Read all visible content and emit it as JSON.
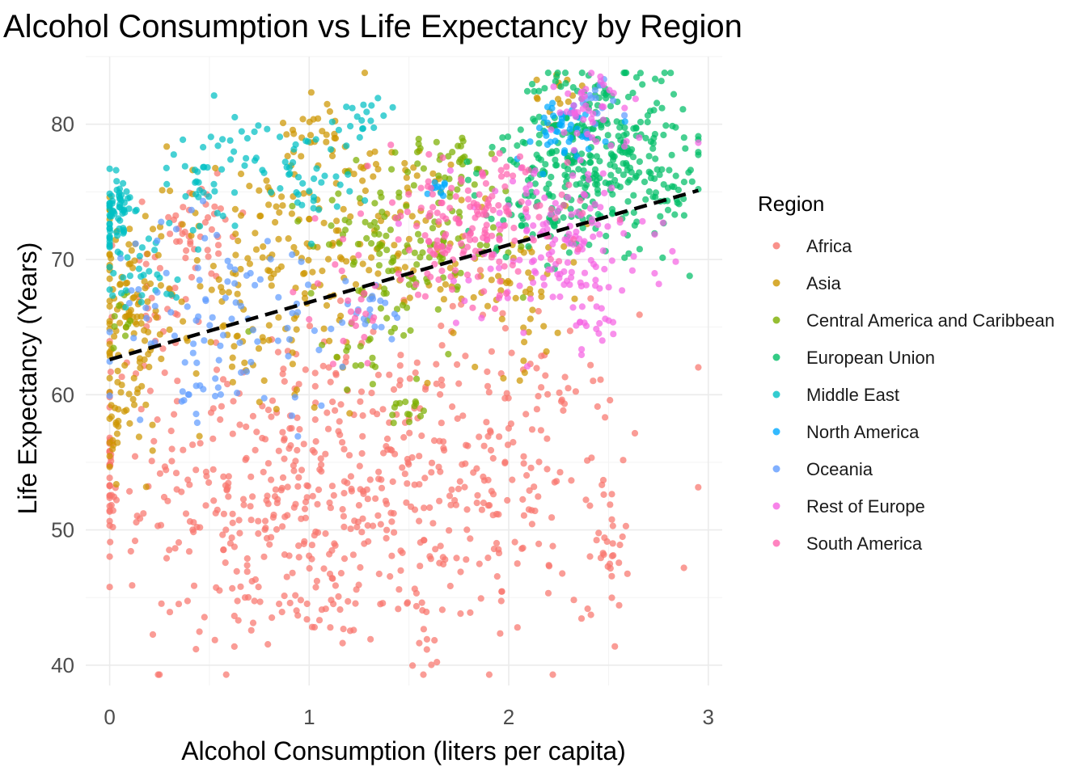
{
  "chart_data": {
    "type": "scatter",
    "title": "Alcohol Consumption vs Life Expectancy by Region",
    "xlabel": "Alcohol Consumption (liters per capita)",
    "ylabel": "Life Expectancy (Years)",
    "xlim": [
      -0.12,
      3.07
    ],
    "ylim": [
      38.5,
      85.0
    ],
    "x_ticks": [
      0,
      1,
      2,
      3
    ],
    "y_ticks": [
      40,
      50,
      60,
      70,
      80
    ],
    "grid": true,
    "legend": {
      "title": "Region",
      "position": "right"
    },
    "trend_line": {
      "style": "dashed",
      "color": "#000000",
      "x": [
        0.0,
        2.95
      ],
      "y": [
        62.6,
        75.1
      ]
    },
    "series": [
      {
        "name": "Africa",
        "color": "#F8766D",
        "clusters": [
          {
            "cx": 0.9,
            "cy": 53,
            "sx": 0.42,
            "sy": 6.0,
            "n": 380
          },
          {
            "cx": 1.9,
            "cy": 54,
            "sx": 0.35,
            "sy": 6.0,
            "n": 240
          },
          {
            "cx": 0.0,
            "cy": 53.5,
            "sx": 0.01,
            "sy": 2.0,
            "n": 30
          },
          {
            "cx": 0.2,
            "cy": 65,
            "sx": 0.1,
            "sy": 4.0,
            "n": 40
          },
          {
            "cx": 0.45,
            "cy": 72,
            "sx": 0.12,
            "sy": 2.0,
            "n": 40
          },
          {
            "cx": 2.5,
            "cy": 49,
            "sx": 0.05,
            "sy": 2.5,
            "n": 25
          },
          {
            "cx": 1.0,
            "cy": 44.5,
            "sx": 0.3,
            "sy": 1.2,
            "n": 30
          },
          {
            "cx": 1.55,
            "cy": 41,
            "sx": 0.04,
            "sy": 1.2,
            "n": 8
          }
        ]
      },
      {
        "name": "Asia",
        "color": "#CD9600",
        "clusters": [
          {
            "cx": 0.1,
            "cy": 65,
            "sx": 0.09,
            "sy": 4.5,
            "n": 90
          },
          {
            "cx": 0.7,
            "cy": 68,
            "sx": 0.35,
            "sy": 5.0,
            "n": 150
          },
          {
            "cx": 1.3,
            "cy": 73,
            "sx": 0.35,
            "sy": 3.0,
            "n": 110
          },
          {
            "cx": 1.05,
            "cy": 80,
            "sx": 0.08,
            "sy": 1.5,
            "n": 25
          },
          {
            "cx": 2.0,
            "cy": 68,
            "sx": 0.2,
            "sy": 3.0,
            "n": 60
          },
          {
            "cx": 2.25,
            "cy": 82,
            "sx": 0.06,
            "sy": 1.0,
            "n": 15
          },
          {
            "cx": 0.02,
            "cy": 58,
            "sx": 0.02,
            "sy": 2.0,
            "n": 20
          }
        ]
      },
      {
        "name": "Central America and Caribbean",
        "color": "#7CAE00",
        "clusters": [
          {
            "cx": 1.5,
            "cy": 71,
            "sx": 0.25,
            "sy": 3.0,
            "n": 130
          },
          {
            "cx": 1.7,
            "cy": 77,
            "sx": 0.12,
            "sy": 1.2,
            "n": 30
          },
          {
            "cx": 1.5,
            "cy": 59,
            "sx": 0.05,
            "sy": 1.2,
            "n": 15
          },
          {
            "cx": 1.3,
            "cy": 63,
            "sx": 0.08,
            "sy": 1.5,
            "n": 15
          },
          {
            "cx": 0.05,
            "cy": 67,
            "sx": 0.05,
            "sy": 2.0,
            "n": 10
          }
        ]
      },
      {
        "name": "European Union",
        "color": "#00BE67",
        "clusters": [
          {
            "cx": 2.45,
            "cy": 78,
            "sx": 0.22,
            "sy": 3.2,
            "n": 320
          },
          {
            "cx": 2.2,
            "cy": 74,
            "sx": 0.2,
            "sy": 2.0,
            "n": 60
          },
          {
            "cx": 2.85,
            "cy": 75,
            "sx": 0.06,
            "sy": 1.5,
            "n": 12
          }
        ]
      },
      {
        "name": "Middle East",
        "color": "#00BFC4",
        "clusters": [
          {
            "cx": 0.03,
            "cy": 73,
            "sx": 0.04,
            "sy": 2.0,
            "n": 70
          },
          {
            "cx": 0.75,
            "cy": 78,
            "sx": 0.2,
            "sy": 1.5,
            "n": 40
          },
          {
            "cx": 1.0,
            "cy": 75.5,
            "sx": 0.12,
            "sy": 1.5,
            "n": 30
          },
          {
            "cx": 1.3,
            "cy": 81,
            "sx": 0.06,
            "sy": 0.8,
            "n": 15
          },
          {
            "cx": 0.2,
            "cy": 69,
            "sx": 0.1,
            "sy": 1.5,
            "n": 25
          },
          {
            "cx": 0.45,
            "cy": 75,
            "sx": 0.1,
            "sy": 1.5,
            "n": 20
          }
        ]
      },
      {
        "name": "North America",
        "color": "#00A9FF",
        "clusters": [
          {
            "cx": 2.25,
            "cy": 79.5,
            "sx": 0.12,
            "sy": 1.2,
            "n": 45
          },
          {
            "cx": 1.65,
            "cy": 75,
            "sx": 0.05,
            "sy": 0.6,
            "n": 10
          }
        ]
      },
      {
        "name": "Oceania",
        "color": "#619CFF",
        "clusters": [
          {
            "cx": 0.6,
            "cy": 66,
            "sx": 0.3,
            "sy": 3.5,
            "n": 90
          },
          {
            "cx": 1.3,
            "cy": 66.5,
            "sx": 0.12,
            "sy": 1.2,
            "n": 20
          },
          {
            "cx": 0.45,
            "cy": 60,
            "sx": 0.05,
            "sy": 1.0,
            "n": 10
          },
          {
            "cx": 2.45,
            "cy": 81.5,
            "sx": 0.05,
            "sy": 1.0,
            "n": 15
          }
        ]
      },
      {
        "name": "Rest of Europe",
        "color": "#F564E3",
        "clusters": [
          {
            "cx": 2.25,
            "cy": 71,
            "sx": 0.25,
            "sy": 3.5,
            "n": 160
          },
          {
            "cx": 2.4,
            "cy": 81,
            "sx": 0.1,
            "sy": 1.5,
            "n": 40
          },
          {
            "cx": 2.45,
            "cy": 65.5,
            "sx": 0.05,
            "sy": 0.6,
            "n": 10
          }
        ]
      },
      {
        "name": "South America",
        "color": "#FF64B0",
        "clusters": [
          {
            "cx": 1.8,
            "cy": 72.5,
            "sx": 0.25,
            "sy": 2.5,
            "n": 170
          },
          {
            "cx": 1.25,
            "cy": 66,
            "sx": 0.12,
            "sy": 2.0,
            "n": 20
          }
        ]
      }
    ]
  }
}
